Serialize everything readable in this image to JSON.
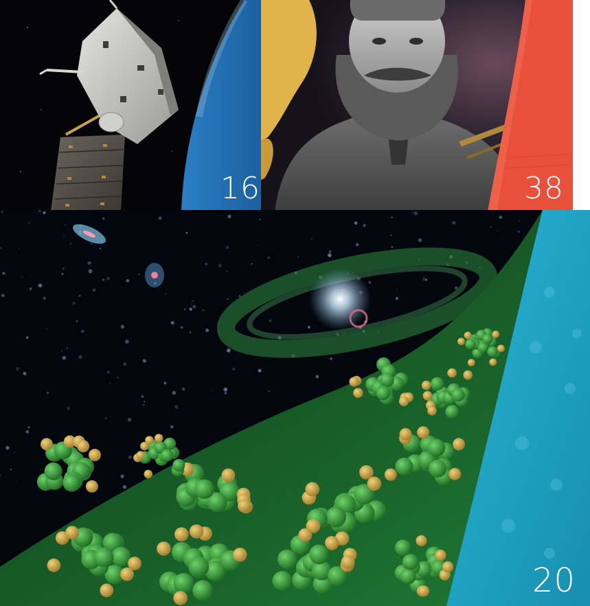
{
  "teasers": [
    {
      "page_number": "16",
      "accent_color": "#1f6fb0",
      "image": "spacecraft"
    },
    {
      "page_number": "38",
      "accent_color": "#e8503c",
      "image": "historic-portrait"
    },
    {
      "page_number": "20",
      "accent_color": "#1ea3c4",
      "image": "molecules-in-space"
    }
  ]
}
